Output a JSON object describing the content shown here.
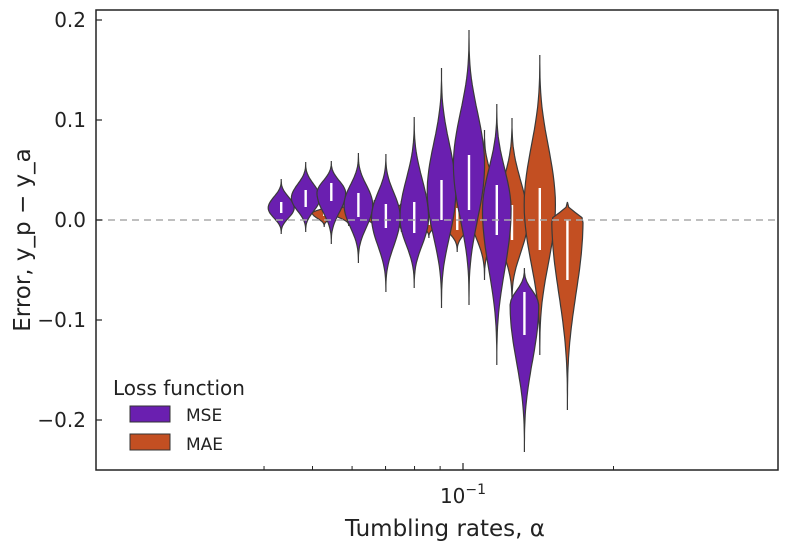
{
  "chart_data": {
    "type": "violin",
    "xlabel": "Tumbling rates, α",
    "ylabel": "Error, y_p − y_a",
    "ylim": [
      -0.25,
      0.21
    ],
    "x_scale": "log",
    "x_tick_label": "10^-1",
    "y_ticks": [
      {
        "v": 0.2,
        "label": "0.2"
      },
      {
        "v": 0.1,
        "label": "0.1"
      },
      {
        "v": 0.0,
        "label": "0.0"
      },
      {
        "v": -0.1,
        "label": "−0.1"
      },
      {
        "v": -0.2,
        "label": "−0.2"
      }
    ],
    "reference_line": 0.0,
    "grid": false,
    "legend": {
      "title": "Loss function",
      "placement": "lower-left",
      "entries": [
        {
          "name": "MSE",
          "color": "#6a1fb0"
        },
        {
          "name": "MAE",
          "color": "#c34f22"
        }
      ]
    },
    "groups": [
      {
        "center": 0.0478,
        "MSE": {
          "min": -0.014,
          "max": 0.041,
          "q1": 0.007,
          "q3": 0.018,
          "mode": 0.012,
          "width": 0.5
        },
        "MAE": {
          "min": -0.007,
          "max": 0.014,
          "q1": 0.004,
          "q3": 0.009,
          "mode": 0.007,
          "width": 0.46
        }
      },
      {
        "center": 0.0535,
        "MSE": {
          "min": -0.012,
          "max": 0.058,
          "q1": 0.013,
          "q3": 0.03,
          "mode": 0.022,
          "width": 0.55
        },
        "MAE": {
          "min": -0.006,
          "max": 0.019,
          "q1": 0.003,
          "q3": 0.01,
          "mode": 0.007,
          "width": 0.6
        }
      },
      {
        "center": 0.0602,
        "MSE": {
          "min": -0.024,
          "max": 0.059,
          "q1": 0.019,
          "q3": 0.037,
          "mode": 0.027,
          "width": 0.55
        },
        "MAE": {
          "min": -0.008,
          "max": 0.02,
          "q1": 0.001,
          "q3": 0.011,
          "mode": 0.006,
          "width": 0.58
        }
      },
      {
        "center": 0.0682,
        "MSE": {
          "min": -0.043,
          "max": 0.067,
          "q1": 0.003,
          "q3": 0.027,
          "mode": 0.015,
          "width": 0.55
        },
        "MAE": {
          "min": -0.012,
          "max": 0.019,
          "q1": 0.0,
          "q3": 0.01,
          "mode": 0.005,
          "width": 0.6
        }
      },
      {
        "center": 0.0774,
        "MSE": {
          "min": -0.072,
          "max": 0.066,
          "q1": -0.008,
          "q3": 0.016,
          "mode": 0.003,
          "width": 0.55
        },
        "MAE": {
          "min": -0.018,
          "max": 0.026,
          "q1": -0.005,
          "q3": 0.009,
          "mode": 0.002,
          "width": 0.6
        }
      },
      {
        "center": 0.0882,
        "MSE": {
          "min": -0.068,
          "max": 0.103,
          "q1": -0.013,
          "q3": 0.018,
          "mode": 0.002,
          "width": 0.55
        },
        "MAE": {
          "min": -0.032,
          "max": 0.042,
          "q1": -0.01,
          "q3": 0.012,
          "mode": 0.0,
          "width": 0.6
        }
      },
      {
        "center": 0.1,
        "MSE": {
          "min": -0.088,
          "max": 0.152,
          "q1": 0.0,
          "q3": 0.04,
          "mode": 0.028,
          "width": 0.55
        },
        "MAE": {
          "min": -0.06,
          "max": 0.09,
          "q1": -0.012,
          "q3": 0.015,
          "mode": 0.01,
          "width": 0.6
        }
      },
      {
        "center": 0.1135,
        "MSE": {
          "min": -0.085,
          "max": 0.19,
          "q1": 0.01,
          "q3": 0.065,
          "mode": 0.055,
          "width": 0.6
        },
        "MAE": {
          "min": -0.085,
          "max": 0.102,
          "q1": -0.02,
          "q3": 0.015,
          "mode": 0.0,
          "width": 0.6
        }
      },
      {
        "center": 0.129,
        "MSE": {
          "min": -0.145,
          "max": 0.116,
          "q1": -0.015,
          "q3": 0.035,
          "mode": 0.01,
          "width": 0.55
        },
        "MAE": {
          "min": -0.135,
          "max": 0.165,
          "q1": -0.03,
          "q3": 0.032,
          "mode": 0.015,
          "width": 0.6
        }
      },
      {
        "center": 0.1465,
        "MSE": {
          "min": -0.232,
          "max": -0.048,
          "q1": -0.115,
          "q3": -0.072,
          "mode": -0.085,
          "width": 0.55
        },
        "MAE": {
          "min": -0.19,
          "max": 0.018,
          "q1": -0.06,
          "q3": 0.0,
          "mode": 0.0,
          "width": 0.6
        }
      }
    ]
  }
}
